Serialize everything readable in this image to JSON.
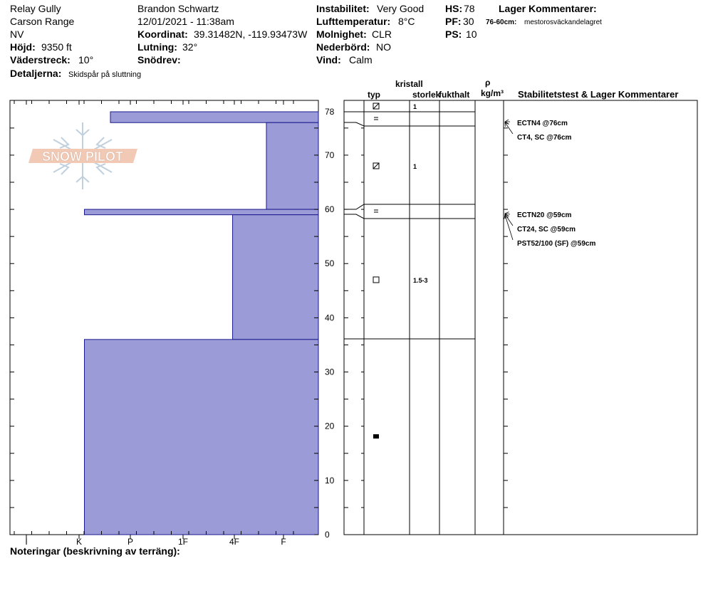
{
  "header": {
    "site": "Relay Gully",
    "range": "Carson Range",
    "state": "NV",
    "elevation_label": "Höjd:",
    "elevation_value": "9350 ft",
    "aspect_label": "Väderstreck:",
    "aspect_value": "10°",
    "details_label": "Detaljerna:",
    "details_value": "Skidspår på sluttning",
    "observer": "Brandon Schwartz",
    "datetime": "12/01/2021 - 11:38am",
    "coord_label": "Koordinat:",
    "coord_value": "39.31482N, -119.93473W",
    "slope_label": "Lutning:",
    "slope_value": "32°",
    "drift_label": "Snödrev:",
    "drift_value": "",
    "instability_label": "Instabilitet:",
    "instability_value": "Very Good",
    "airtemp_label": "Lufttemperatur:",
    "airtemp_value": "8°C",
    "cloud_label": "Molnighet:",
    "cloud_value": "CLR",
    "precip_label": "Nederbörd:",
    "precip_value": "NO",
    "wind_label": "Vind:",
    "wind_value": "Calm",
    "hs_label": "HS:",
    "hs_value": "78",
    "pf_label": "PF:",
    "pf_value": "30",
    "ps_label": "PS:",
    "ps_value": "10",
    "layer_comments_title": "Lager Kommentarer:",
    "layer_comment_range": "76-60cm:",
    "layer_comment_text": "mestorosväckandelagret"
  },
  "columns": {
    "type": "typ",
    "crystal_1": "kristall",
    "crystal_2": "storlek",
    "moisture": "fukthalt",
    "density_1": "ρ",
    "density_2": "kg/m³",
    "stability": "Stabilitetstest & Lager Kommentarer"
  },
  "logo_text": "SNOW PILOT",
  "notes_label": "Noteringar (beskrivning av terräng):",
  "colors": {
    "hardness_fill": "#9b9bd7",
    "hardness_stroke": "#1a1a8c"
  },
  "chart_data": {
    "type": "bar",
    "title": "",
    "xlabel": "",
    "ylabel": "",
    "ylim": [
      0,
      78
    ],
    "y_ticks": [
      "0",
      "10",
      "20",
      "30",
      "40",
      "50",
      "60",
      "70",
      "78"
    ],
    "hardness_scale": [
      "I",
      "K",
      "P",
      "1F",
      "4F",
      "F"
    ],
    "series": [
      {
        "name": "",
        "layers": [
          {
            "bottom": 76,
            "top": 78,
            "hardness": 4.0
          },
          {
            "bottom": 60,
            "top": 76,
            "hardness": 1.0
          },
          {
            "bottom": 59,
            "top": 60,
            "hardness": 4.5
          },
          {
            "bottom": 36,
            "top": 59,
            "hardness": 1.65
          },
          {
            "bottom": 0,
            "top": 36,
            "hardness": 4.5
          }
        ]
      }
    ],
    "grain_rows": [
      {
        "pos": 77,
        "symbol": "decomposing",
        "size": "1"
      },
      {
        "pos": 75.5,
        "symbol": "equals",
        "size": ""
      },
      {
        "pos": 68,
        "symbol": "decomposing",
        "size": "1"
      },
      {
        "pos": 59.5,
        "symbol": "equals",
        "size": ""
      },
      {
        "pos": 47,
        "symbol": "faceted",
        "size": "1.5-3"
      },
      {
        "pos": 18,
        "symbol": "melt-form",
        "size": ""
      }
    ],
    "layer_boundaries": [
      78,
      76,
      60,
      59,
      36
    ],
    "stability_tests": [
      {
        "label": "ECTN4 @76cm"
      },
      {
        "label": "CT4, SC @76cm"
      },
      {
        "label": "ECTN20 @59cm"
      },
      {
        "label": "CT24, SC @59cm"
      },
      {
        "label": "PST52/100 (SF) @59cm"
      }
    ]
  }
}
